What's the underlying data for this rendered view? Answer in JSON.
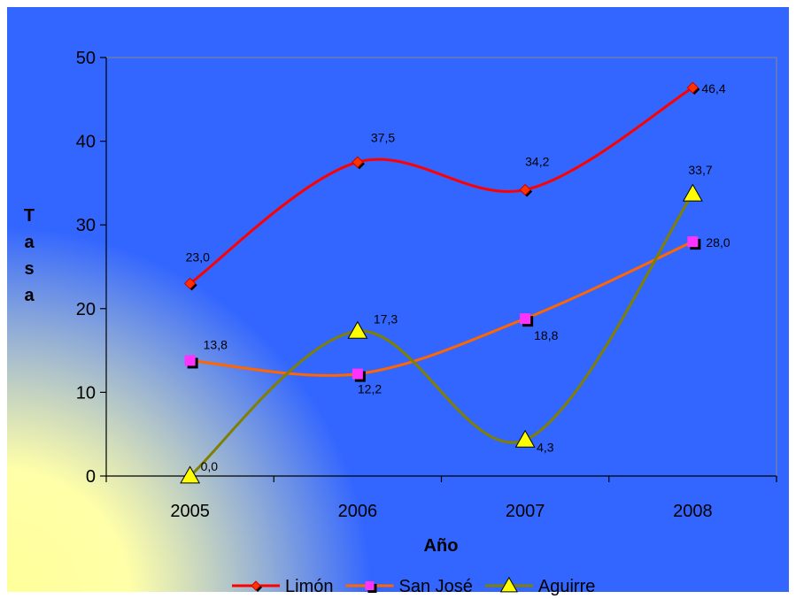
{
  "chart_data": {
    "type": "line",
    "categories": [
      "2005",
      "2006",
      "2007",
      "2008"
    ],
    "xlabel": "Año",
    "ylabel": "Tasa",
    "ylim": [
      0,
      50
    ],
    "yticks": [
      "0",
      "10",
      "20",
      "30",
      "40",
      "50"
    ],
    "grid": false,
    "legend_position": "bottom",
    "background": {
      "base": "#3366ff",
      "highlight": "#ffff99"
    },
    "series": [
      {
        "name": "Limón",
        "values": [
          23.0,
          37.5,
          34.2,
          46.4
        ],
        "labels": [
          "23,0",
          "37,5",
          "34,2",
          "46,4"
        ],
        "color": "#ff0000",
        "marker": "diamond",
        "marker_fill": "#ff3300"
      },
      {
        "name": "San José",
        "values": [
          13.8,
          12.2,
          18.8,
          28.0
        ],
        "labels": [
          "13,8",
          "12,2",
          "18,8",
          "28,0"
        ],
        "color": "#ff6600",
        "marker": "square",
        "marker_fill": "#ff33ff"
      },
      {
        "name": "Aguirre",
        "values": [
          0.0,
          17.3,
          4.3,
          33.7
        ],
        "labels": [
          "0,0",
          "17,3",
          "4,3",
          "33,7"
        ],
        "color": "#808000",
        "marker": "triangle",
        "marker_fill": "#ffff00"
      }
    ]
  }
}
